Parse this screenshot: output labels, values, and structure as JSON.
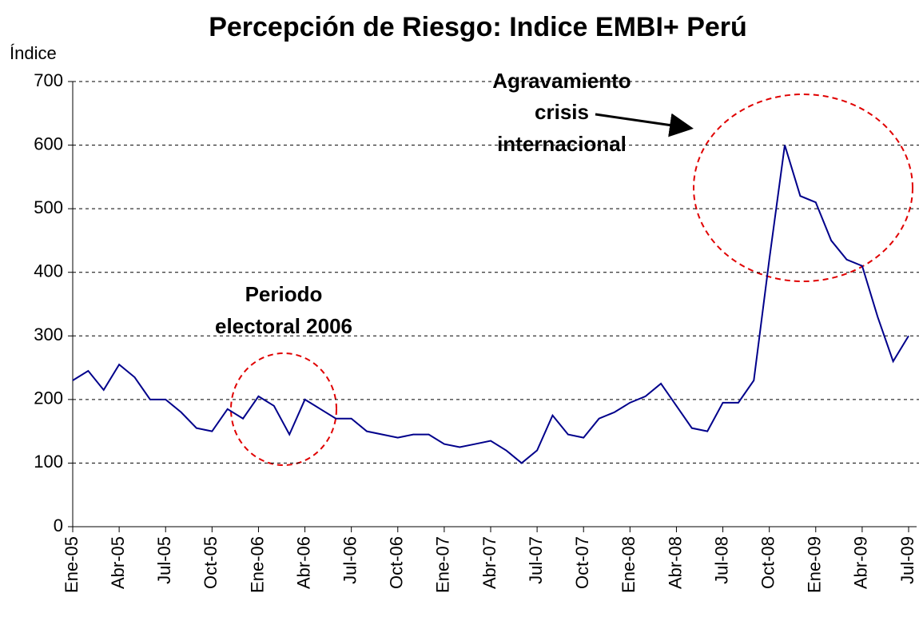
{
  "chart_data": {
    "type": "line",
    "title": "Percepción de Riesgo: Indice EMBI+ Perú",
    "y_label": "Índice",
    "categories": [
      "Ene-05",
      null,
      null,
      "Abr-05",
      null,
      null,
      "Jul-05",
      null,
      null,
      "Oct-05",
      null,
      null,
      "Ene-06",
      null,
      null,
      "Abr-06",
      null,
      null,
      "Jul-06",
      null,
      null,
      "Oct-06",
      null,
      null,
      "Ene-07",
      null,
      null,
      "Abr-07",
      null,
      null,
      "Jul-07",
      null,
      null,
      "Oct-07",
      null,
      null,
      "Ene-08",
      null,
      null,
      "Abr-08",
      null,
      null,
      "Jul-08",
      null,
      null,
      "Oct-08",
      null,
      null,
      "Ene-09",
      null,
      null,
      "Abr-09",
      null,
      null,
      "Jul-09"
    ],
    "series": [
      {
        "name": "EMBI+ Perú",
        "color": "#00008b",
        "values": [
          230,
          245,
          215,
          255,
          235,
          200,
          200,
          180,
          155,
          150,
          185,
          170,
          205,
          190,
          145,
          200,
          185,
          170,
          170,
          150,
          145,
          140,
          145,
          145,
          130,
          125,
          130,
          135,
          120,
          100,
          120,
          175,
          145,
          140,
          170,
          180,
          195,
          205,
          225,
          190,
          155,
          150,
          195,
          195,
          230,
          420,
          600,
          520,
          510,
          450,
          420,
          410,
          330,
          260,
          300
        ]
      }
    ],
    "ylim": [
      0,
      700
    ],
    "yticks": [
      0,
      100,
      200,
      300,
      400,
      500,
      600,
      700
    ],
    "grid": true,
    "annotations": [
      [
        "Periodo",
        "electoral 2006"
      ],
      [
        "Agravamiento",
        "crisis",
        "internacional"
      ]
    ]
  }
}
